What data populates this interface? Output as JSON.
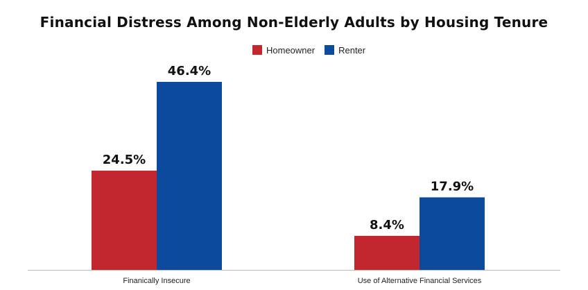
{
  "chart_data": {
    "type": "bar",
    "title": "Financial Distress Among Non-Elderly Adults by Housing Tenure",
    "categories": [
      "Finanically Insecure",
      "Use of Alternative Financial Services"
    ],
    "series": [
      {
        "name": "Homeowner",
        "color": "#c1272d",
        "values": [
          24.5,
          8.4
        ],
        "labels": [
          "24.5%",
          "8.4%"
        ]
      },
      {
        "name": "Renter",
        "color": "#0b4a9c",
        "values": [
          46.4,
          17.9
        ],
        "labels": [
          "46.4%",
          "17.9%"
        ]
      }
    ],
    "ylim": [
      0,
      55
    ],
    "grid": false,
    "legend_position": "top-center"
  }
}
